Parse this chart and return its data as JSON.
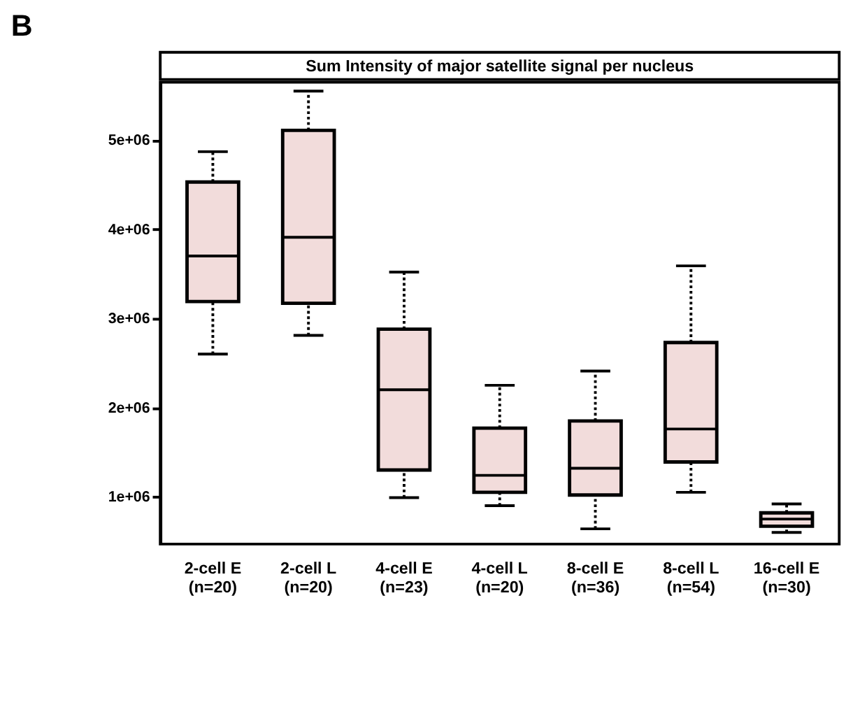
{
  "chart_data": {
    "type": "box",
    "title": "Sum Intensity of major satellite signal per nucleus",
    "annotations": [
      "B"
    ],
    "categories": [
      "2-cell E\n(n=20)",
      "2-cell L\n(n=20)",
      "4-cell E\n(n=23)",
      "4-cell L\n(n=20)",
      "8-cell E\n(n=36)",
      "8-cell L\n(n=54)",
      "16-cell E\n(n=30)"
    ],
    "series": [
      {
        "color": "#f2dcdb",
        "boxes": [
          {
            "low": 2600000,
            "q1": 3190000,
            "median": 3700000,
            "q3": 4530000,
            "high": 4870000
          },
          {
            "low": 2810000,
            "q1": 3170000,
            "median": 3910000,
            "q3": 5110000,
            "high": 5550000
          },
          {
            "low": 990000,
            "q1": 1300000,
            "median": 2200000,
            "q3": 2880000,
            "high": 3520000
          },
          {
            "low": 900000,
            "q1": 1050000,
            "median": 1240000,
            "q3": 1770000,
            "high": 2250000
          },
          {
            "low": 640000,
            "q1": 1020000,
            "median": 1320000,
            "q3": 1850000,
            "high": 2410000
          },
          {
            "low": 1050000,
            "q1": 1390000,
            "median": 1760000,
            "q3": 2730000,
            "high": 3590000
          },
          {
            "low": 600000,
            "q1": 670000,
            "median": 750000,
            "q3": 820000,
            "high": 920000
          }
        ]
      }
    ],
    "ylim": [
      470000,
      5650000
    ],
    "yticks": [
      {
        "value": 1000000,
        "label": "1e+06"
      },
      {
        "value": 2000000,
        "label": "2e+06"
      },
      {
        "value": 3000000,
        "label": "3e+06"
      },
      {
        "value": 4000000,
        "label": "4e+06"
      },
      {
        "value": 5000000,
        "label": "5e+06"
      }
    ],
    "grid": false
  }
}
